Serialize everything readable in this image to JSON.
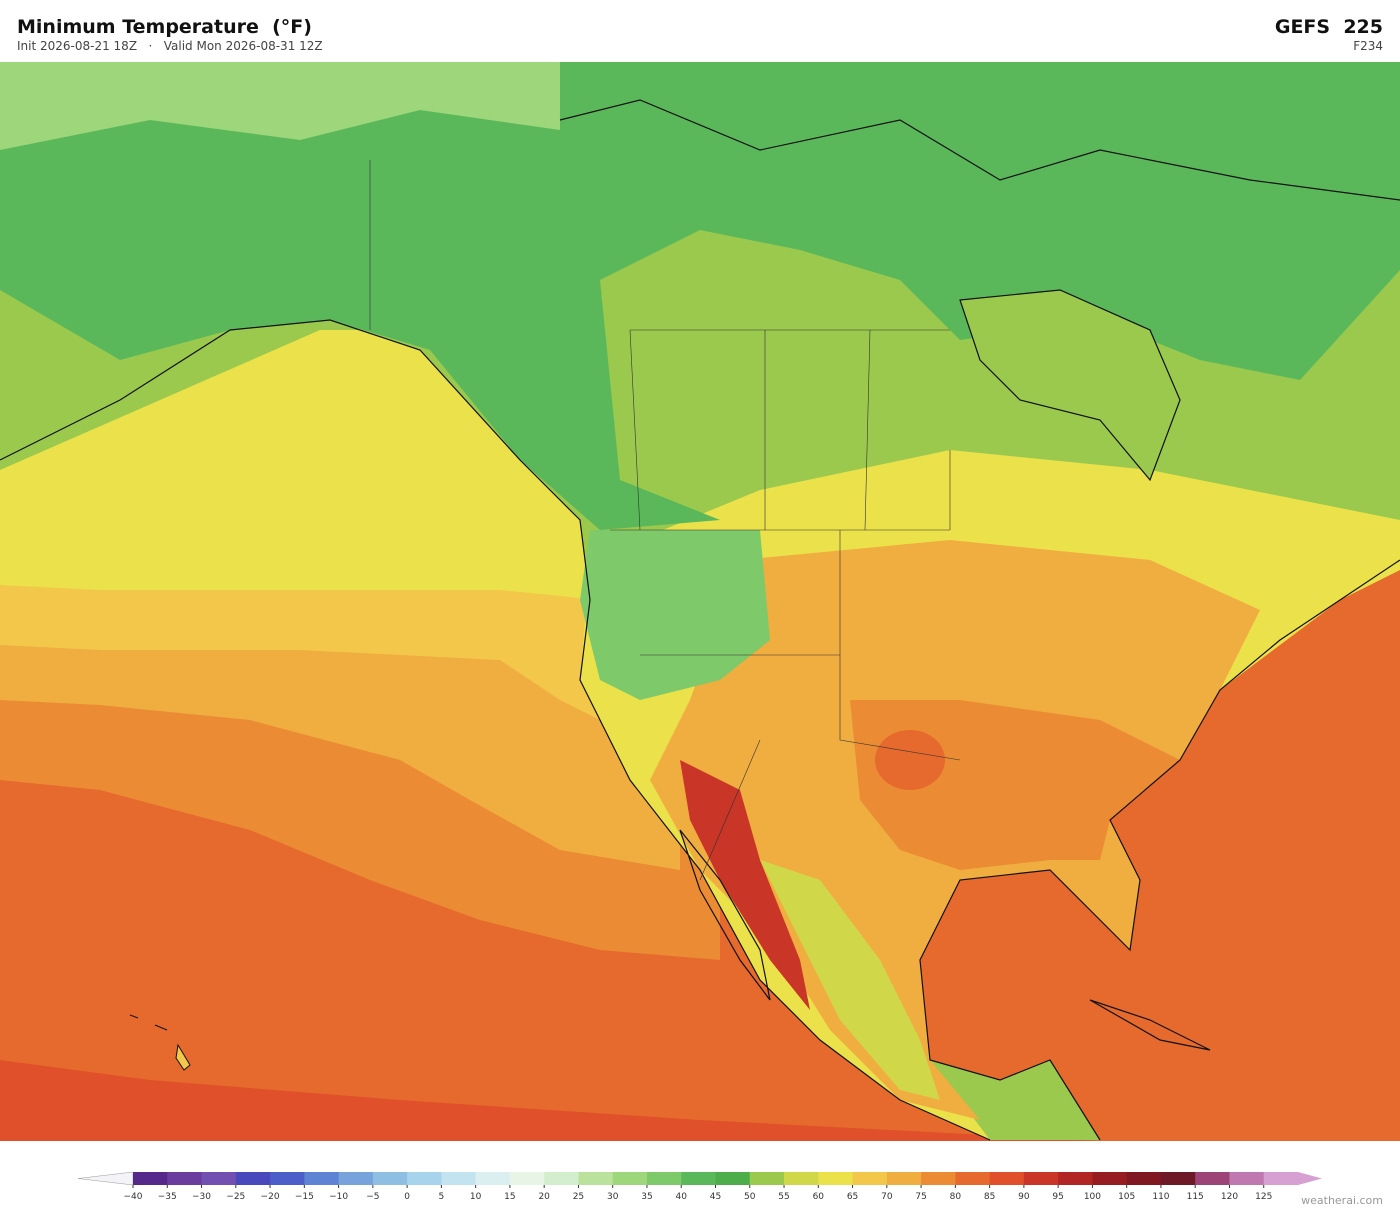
{
  "header": {
    "title": "Minimum Temperature  (°F)",
    "subtitle": "Init 2026-08-21 18Z   ·   Valid Mon 2026-08-31 12Z",
    "model": "GEFS  225",
    "forecast_hour": "F234"
  },
  "colorbar": {
    "ticks": [
      {
        "value": -40,
        "label": "−40"
      },
      {
        "value": -35,
        "label": "−35"
      },
      {
        "value": -30,
        "label": "−30"
      },
      {
        "value": -25,
        "label": "−25"
      },
      {
        "value": -20,
        "label": "−20"
      },
      {
        "value": -15,
        "label": "−15"
      },
      {
        "value": -10,
        "label": "−10"
      },
      {
        "value": -5,
        "label": "−5"
      },
      0,
      5,
      10,
      15,
      20,
      25,
      30,
      35,
      40,
      45,
      50,
      55,
      60,
      65,
      70,
      75,
      80,
      85,
      90,
      95,
      100,
      105,
      110,
      115,
      120,
      125
    ],
    "colors": [
      "#55288c",
      "#6a3c9e",
      "#7150b2",
      "#4a48bd",
      "#4b5ec9",
      "#5e82d4",
      "#78a2db",
      "#8ebfe3",
      "#a8d3ec",
      "#c4e3f0",
      "#dbeff0",
      "#e8f5e6",
      "#d3eecc",
      "#bbe29c",
      "#9ed67c",
      "#7ec96a",
      "#5bb85a",
      "#4cad4a",
      "#9ac94e",
      "#d0d84a",
      "#ebe14a",
      "#f3c84a",
      "#f0ad40",
      "#eb8c35",
      "#e66a2e",
      "#e0502a",
      "#c93526",
      "#b12524",
      "#961c22",
      "#7f1820",
      "#6d1a26",
      "#9c4477",
      "#c078b0",
      "#d6a0d2"
    ],
    "under_color": "#f4f4f8",
    "over_color": "#d6a0d2"
  },
  "credit": "weatherai.com"
}
